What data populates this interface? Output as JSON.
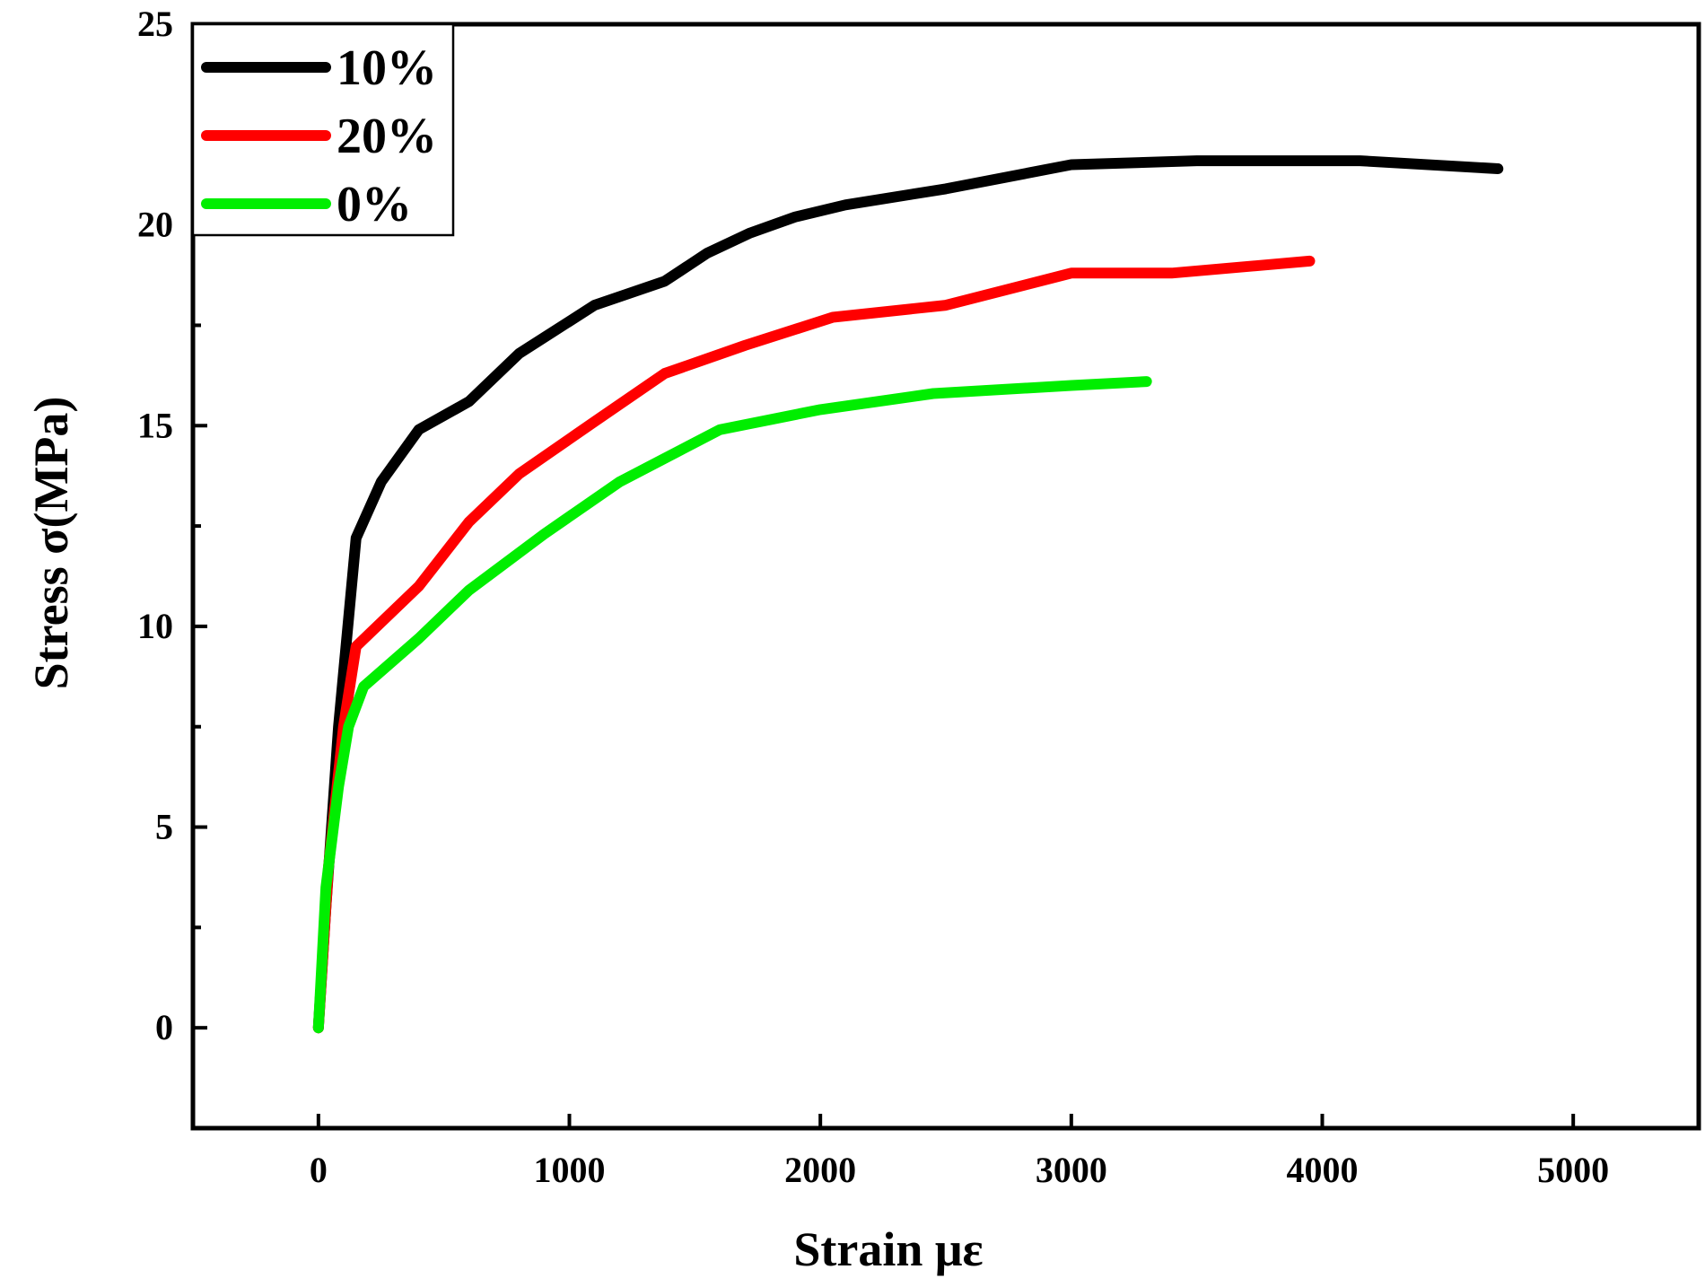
{
  "chart_data": {
    "type": "line",
    "title": "",
    "xlabel": "Strain  με",
    "ylabel": "Stress σ(MPa)",
    "xlim": [
      -500,
      5500
    ],
    "ylim": [
      -2.5,
      25
    ],
    "xticks": [
      0,
      1000,
      2000,
      3000,
      4000,
      5000
    ],
    "xtick_labels": [
      "0",
      "1000",
      "2000",
      "3000",
      "4000",
      "5000"
    ],
    "yticks": [
      0,
      5,
      10,
      15,
      20,
      25
    ],
    "ytick_labels": [
      "0",
      "5",
      "10",
      "15",
      "20",
      "25"
    ],
    "grid": false,
    "legend_position": "top-left",
    "series": [
      {
        "name": "10%",
        "color": "#000000",
        "x": [
          0,
          30,
          80,
          150,
          250,
          400,
          600,
          800,
          1100,
          1380,
          1550,
          1720,
          1900,
          2100,
          2500,
          3000,
          3500,
          4150,
          4700
        ],
        "y": [
          0,
          3.0,
          7.5,
          12.2,
          13.6,
          14.9,
          15.6,
          16.8,
          18.0,
          18.6,
          19.3,
          19.8,
          20.2,
          20.5,
          20.9,
          21.5,
          21.6,
          21.6,
          21.4
        ]
      },
      {
        "name": "20%",
        "color": "#ff0000",
        "x": [
          0,
          40,
          100,
          150,
          400,
          600,
          800,
          1100,
          1380,
          1700,
          2050,
          2500,
          3000,
          3400,
          3950
        ],
        "y": [
          0,
          4.0,
          7.5,
          9.5,
          11.0,
          12.6,
          13.8,
          15.1,
          16.3,
          17.0,
          17.7,
          18.0,
          18.8,
          18.8,
          19.1
        ]
      },
      {
        "name": "0%",
        "color": "#00ee00",
        "x": [
          0,
          30,
          80,
          120,
          180,
          400,
          600,
          900,
          1200,
          1600,
          2000,
          2450,
          3000,
          3300
        ],
        "y": [
          0,
          3.5,
          6.0,
          7.5,
          8.5,
          9.7,
          10.9,
          12.3,
          13.6,
          14.9,
          15.4,
          15.8,
          16.0,
          16.1
        ]
      }
    ]
  }
}
